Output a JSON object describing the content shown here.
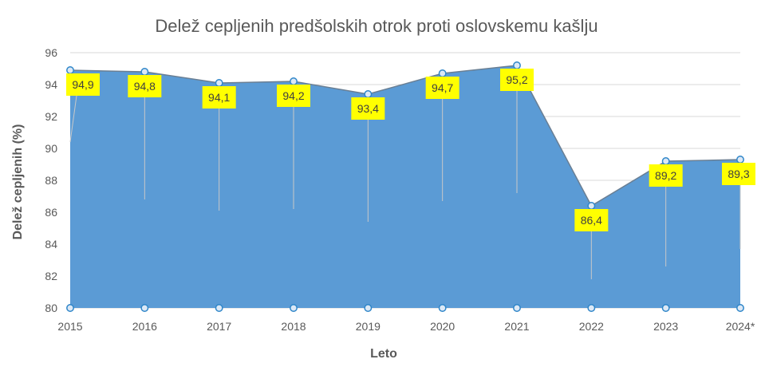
{
  "chart_data": {
    "type": "area",
    "title": "Delež cepljenih predšolskih otrok proti oslovskemu kašlju",
    "xlabel": "Leto",
    "ylabel": "Delež cepljenih (%)",
    "categories": [
      "2015",
      "2016",
      "2017",
      "2018",
      "2019",
      "2020",
      "2021",
      "2022",
      "2023",
      "2024*"
    ],
    "values": [
      94.9,
      94.8,
      94.1,
      94.2,
      93.4,
      94.7,
      95.2,
      86.4,
      89.2,
      89.3
    ],
    "data_labels": [
      "94,9",
      "94,8",
      "94,1",
      "94,2",
      "93,4",
      "94,7",
      "95,2",
      "86,4",
      "89,2",
      "89,3"
    ],
    "ylim": [
      80,
      96
    ],
    "yticks": [
      80,
      82,
      84,
      86,
      88,
      90,
      92,
      94,
      96
    ],
    "grid": true,
    "legend": "none",
    "colors": {
      "area": "#5b9bd5",
      "line": "#6a7f94",
      "marker_fill": "#dbe8f6",
      "marker_stroke": "#2f86c9",
      "label_bg": "#ffff00",
      "grid": "#d9d9d9"
    }
  }
}
